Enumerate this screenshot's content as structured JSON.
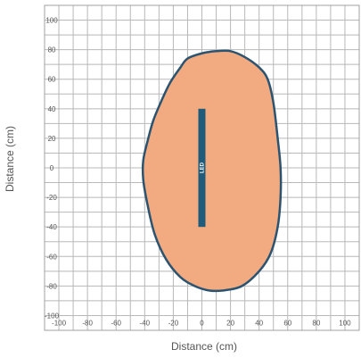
{
  "chart_data": {
    "type": "area",
    "xlabel": "Distance (cm)",
    "ylabel": "Distance (cm)",
    "xlim": [
      -110,
      110
    ],
    "ylim": [
      -110,
      110
    ],
    "grid": true,
    "grid_step": 10,
    "x_ticks": [
      -100,
      -80,
      -60,
      -40,
      -20,
      0,
      20,
      40,
      60,
      80,
      100
    ],
    "y_ticks": [
      100,
      80,
      60,
      40,
      20,
      0,
      -20,
      -40,
      -60,
      -80,
      -100
    ],
    "series": [
      {
        "fill_color": "#F2AA80",
        "line_color": "#2C5470",
        "points": [
          [
            -15,
            68
          ],
          [
            -10,
            74
          ],
          [
            0,
            77.5
          ],
          [
            10,
            79
          ],
          [
            20,
            79
          ],
          [
            30,
            75
          ],
          [
            40,
            68
          ],
          [
            46,
            60
          ],
          [
            50,
            44
          ],
          [
            53,
            20
          ],
          [
            55,
            0
          ],
          [
            55,
            -20
          ],
          [
            53,
            -40
          ],
          [
            48,
            -58
          ],
          [
            40,
            -70
          ],
          [
            28,
            -80
          ],
          [
            15,
            -83
          ],
          [
            5,
            -83
          ],
          [
            -5,
            -80
          ],
          [
            -15,
            -74
          ],
          [
            -25,
            -62
          ],
          [
            -33,
            -45
          ],
          [
            -38,
            -25
          ],
          [
            -41,
            -8
          ],
          [
            -41,
            5
          ],
          [
            -38,
            18
          ],
          [
            -34,
            32
          ],
          [
            -28,
            46
          ],
          [
            -22,
            58
          ]
        ]
      }
    ],
    "annotations": [
      {
        "text": "LED",
        "x0": -2.5,
        "x1": 2.5,
        "y0": -40,
        "y1": 40,
        "color": "#1F5B7A"
      }
    ]
  }
}
